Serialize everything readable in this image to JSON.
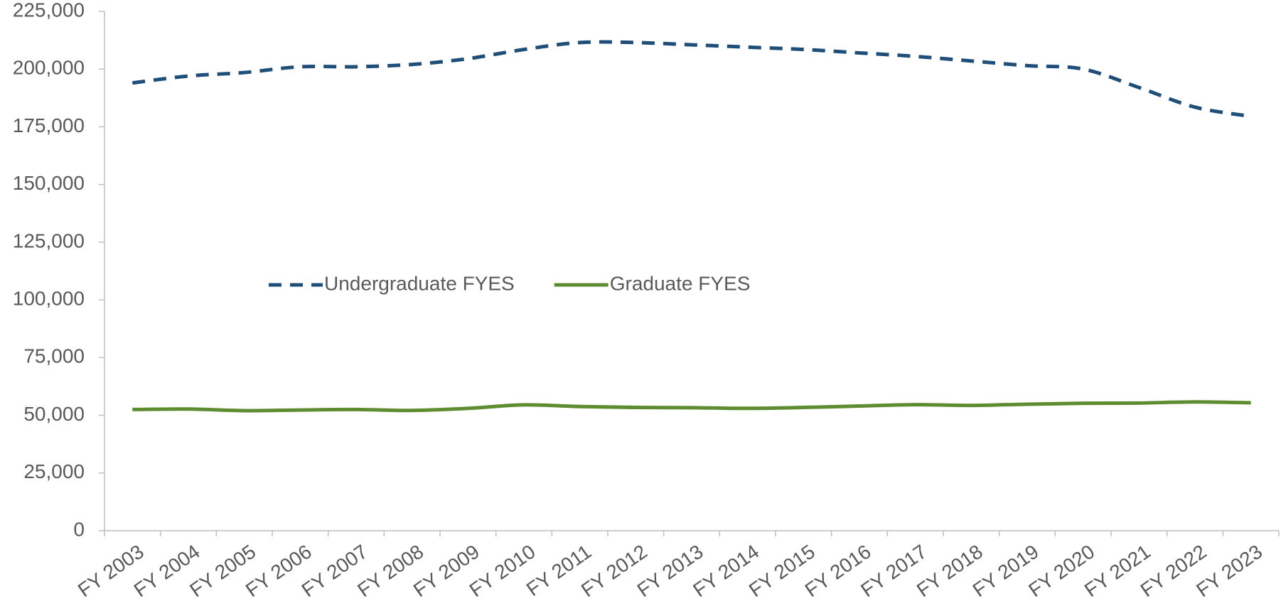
{
  "chart_data": {
    "type": "line",
    "categories": [
      "FY 2003",
      "FY 2004",
      "FY 2005",
      "FY 2006",
      "FY 2007",
      "FY 2008",
      "FY 2009",
      "FY 2010",
      "FY 2011",
      "FY 2012",
      "FY 2013",
      "FY 2014",
      "FY 2015",
      "FY 2016",
      "FY 2017",
      "FY 2018",
      "FY 2019",
      "FY 2020",
      "FY 2021",
      "FY 2022",
      "FY 2023"
    ],
    "series": [
      {
        "name": "Undergraduate FYES",
        "color": "#1f4e79",
        "style": "dashed",
        "values": [
          194000,
          197000,
          198500,
          201000,
          201000,
          202000,
          204500,
          208500,
          211500,
          211500,
          210500,
          209500,
          208500,
          207000,
          205500,
          203500,
          201500,
          200000,
          192000,
          183500,
          179500
        ]
      },
      {
        "name": "Graduate FYES",
        "color": "#5e8c31",
        "style": "solid",
        "values": [
          52500,
          52700,
          52000,
          52300,
          52500,
          52100,
          53000,
          54500,
          53800,
          53400,
          53300,
          53000,
          53400,
          54000,
          54600,
          54300,
          54800,
          55200,
          55300,
          55800,
          55400
        ]
      }
    ],
    "ylim": [
      0,
      225000
    ],
    "yticks": [
      0,
      {
        "value": 25000,
        "label": "25,000"
      },
      {
        "value": 50000,
        "label": "50,000"
      },
      {
        "value": 75000,
        "label": "75,000"
      },
      {
        "value": 100000,
        "label": "100,000"
      },
      {
        "value": 125000,
        "label": "125,000"
      },
      {
        "value": 150000,
        "label": "150,000"
      },
      {
        "value": 175000,
        "label": "175,000"
      },
      {
        "value": 200000,
        "label": "200,000"
      },
      {
        "value": 225000,
        "label": "225,000"
      }
    ],
    "grid": false,
    "legend": "center"
  }
}
